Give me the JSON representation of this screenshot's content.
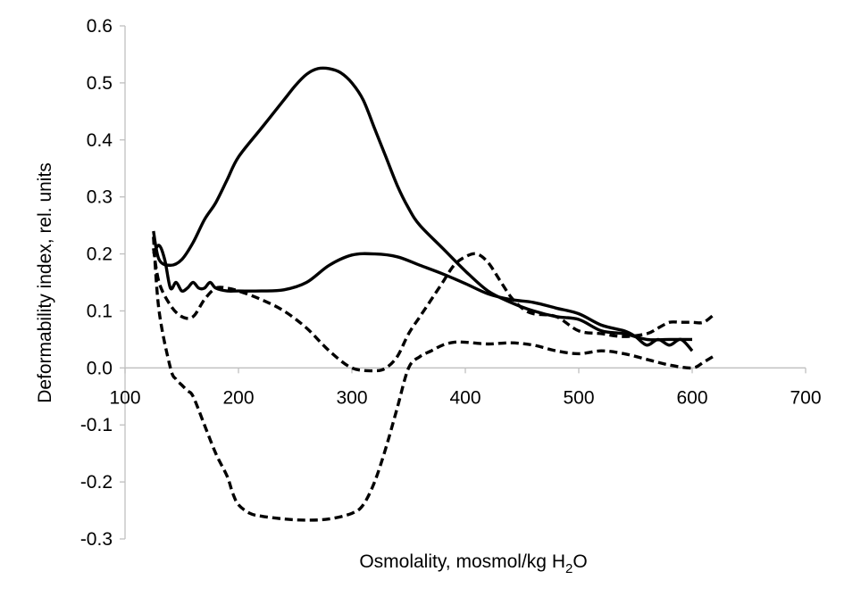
{
  "chart_data": {
    "type": "line",
    "xlabel": "Osmolality, mosmol/kg H",
    "xlabel_sub": "2",
    "xlabel_end": "O",
    "ylabel": "Deformability index,  rel. units",
    "xlim": [
      100,
      700
    ],
    "ylim": [
      -0.3,
      0.6
    ],
    "x_ticks": [
      100,
      200,
      300,
      400,
      500,
      600,
      700
    ],
    "y_ticks": [
      -0.3,
      -0.2,
      -0.1,
      0.0,
      0.1,
      0.2,
      0.3,
      0.4,
      0.5,
      0.6
    ],
    "x_tick_labels": [
      "100",
      "200",
      "300",
      "400",
      "500",
      "600",
      "700"
    ],
    "y_tick_labels": [
      "-0.3",
      "-0.2",
      "-0.1",
      "0.0",
      "0.1",
      "0.2",
      "0.3",
      "0.4",
      "0.5",
      "0.6"
    ],
    "grid": false,
    "legend": "none",
    "series": [
      {
        "style": "solid",
        "x": [
          125,
          130,
          140,
          150,
          160,
          170,
          180,
          190,
          200,
          220,
          240,
          250,
          260,
          270,
          280,
          290,
          300,
          310,
          320,
          330,
          340,
          350,
          360,
          380,
          400,
          420,
          440,
          460,
          480,
          500,
          520,
          540,
          560,
          580,
          600
        ],
        "y": [
          0.24,
          0.19,
          0.18,
          0.19,
          0.22,
          0.26,
          0.29,
          0.33,
          0.37,
          0.42,
          0.47,
          0.495,
          0.515,
          0.525,
          0.525,
          0.518,
          0.5,
          0.47,
          0.42,
          0.37,
          0.32,
          0.28,
          0.25,
          0.21,
          0.17,
          0.135,
          0.115,
          0.1,
          0.09,
          0.085,
          0.065,
          0.06,
          0.05,
          0.05,
          0.05
        ]
      },
      {
        "style": "solid",
        "x": [
          125,
          130,
          135,
          140,
          145,
          150,
          155,
          160,
          165,
          170,
          175,
          180,
          190,
          200,
          220,
          240,
          260,
          280,
          300,
          320,
          340,
          360,
          380,
          400,
          420,
          440,
          460,
          480,
          500,
          520,
          540,
          550,
          560,
          570,
          580,
          590,
          600
        ],
        "y": [
          0.2,
          0.215,
          0.19,
          0.14,
          0.15,
          0.135,
          0.14,
          0.15,
          0.14,
          0.14,
          0.15,
          0.14,
          0.135,
          0.135,
          0.135,
          0.137,
          0.15,
          0.18,
          0.198,
          0.2,
          0.195,
          0.18,
          0.165,
          0.148,
          0.13,
          0.12,
          0.115,
          0.105,
          0.095,
          0.075,
          0.065,
          0.055,
          0.04,
          0.05,
          0.04,
          0.05,
          0.03
        ]
      },
      {
        "style": "dashed",
        "x": [
          125,
          130,
          140,
          150,
          160,
          170,
          180,
          190,
          200,
          220,
          240,
          260,
          280,
          300,
          320,
          330,
          340,
          350,
          360,
          370,
          380,
          390,
          400,
          410,
          420,
          430,
          440,
          450,
          460,
          480,
          500,
          520,
          540,
          560,
          570,
          580,
          590,
          600,
          610,
          620
        ],
        "y": [
          0.21,
          0.15,
          0.11,
          0.09,
          0.09,
          0.12,
          0.14,
          0.14,
          0.135,
          0.12,
          0.1,
          0.07,
          0.03,
          0.0,
          -0.005,
          0.0,
          0.02,
          0.06,
          0.09,
          0.12,
          0.15,
          0.18,
          0.195,
          0.2,
          0.185,
          0.155,
          0.125,
          0.105,
          0.095,
          0.09,
          0.065,
          0.06,
          0.055,
          0.06,
          0.07,
          0.08,
          0.08,
          0.08,
          0.08,
          0.095
        ]
      },
      {
        "style": "dashed",
        "x": [
          125,
          130,
          140,
          145,
          150,
          155,
          160,
          170,
          180,
          190,
          195,
          200,
          210,
          220,
          240,
          260,
          280,
          300,
          310,
          320,
          330,
          340,
          350,
          360,
          370,
          380,
          390,
          400,
          420,
          440,
          460,
          480,
          500,
          520,
          540,
          560,
          580,
          600,
          610,
          620
        ],
        "y": [
          0.23,
          0.1,
          0.0,
          -0.02,
          -0.03,
          -0.04,
          -0.05,
          -0.1,
          -0.15,
          -0.19,
          -0.22,
          -0.24,
          -0.255,
          -0.26,
          -0.265,
          -0.267,
          -0.265,
          -0.255,
          -0.24,
          -0.2,
          -0.14,
          -0.07,
          0.0,
          0.02,
          0.03,
          0.04,
          0.045,
          0.045,
          0.042,
          0.044,
          0.04,
          0.03,
          0.025,
          0.03,
          0.025,
          0.015,
          0.005,
          0.0,
          0.01,
          0.022
        ]
      }
    ]
  }
}
